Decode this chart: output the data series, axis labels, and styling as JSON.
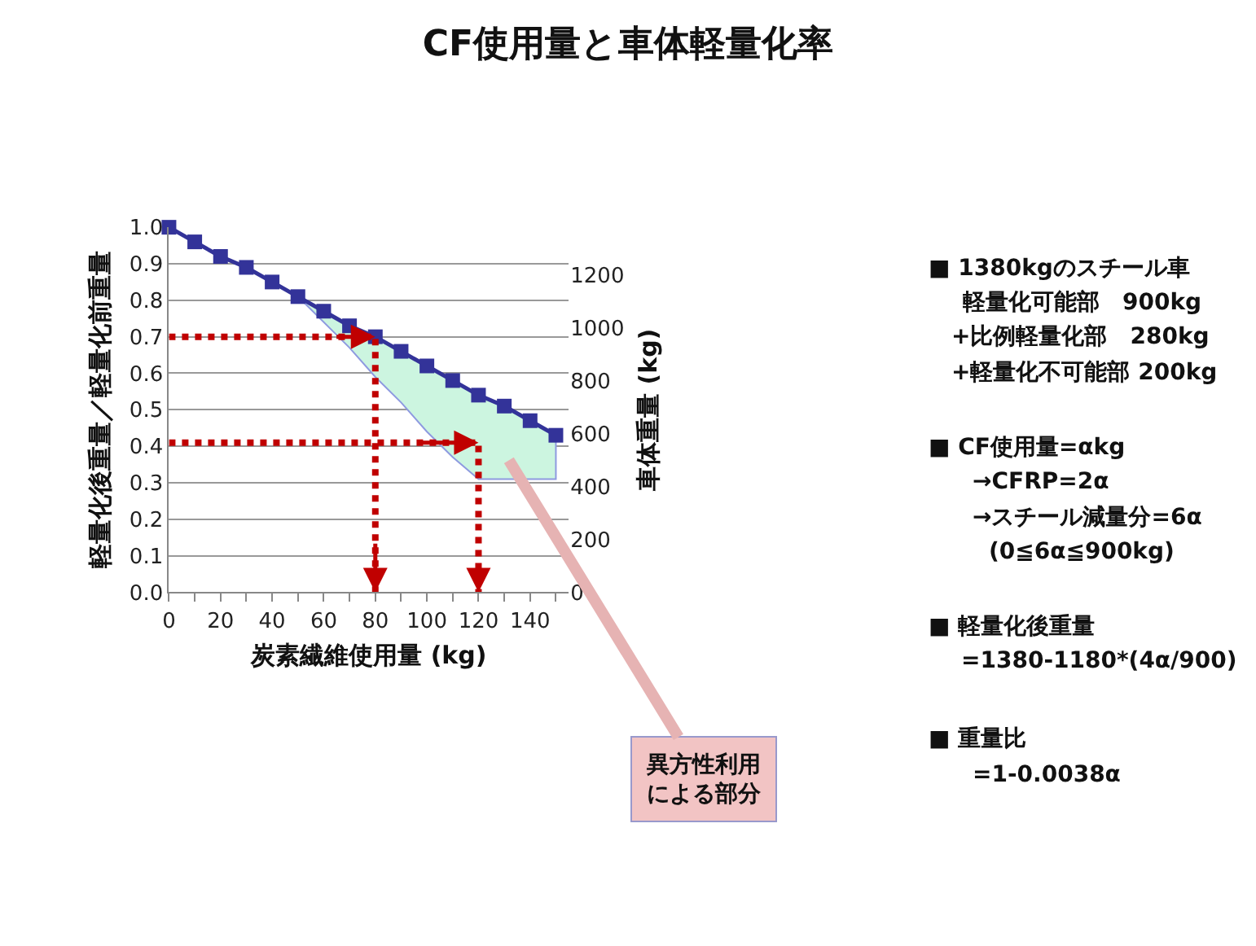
{
  "chart_data": {
    "type": "line",
    "title": "CF使用量と車体軽量化率",
    "xlabel": "炭素繊維使用量 (kg)",
    "ylabel": "軽量化後重量／軽量化前重量",
    "y2label": "車体重量 (kg)",
    "x": [
      0,
      10,
      20,
      30,
      40,
      50,
      60,
      70,
      80,
      90,
      100,
      110,
      120,
      130,
      140,
      150
    ],
    "series": [
      {
        "color": "#333399",
        "marker": "square",
        "line_style": "solid",
        "values": [
          1.0,
          0.96,
          0.92,
          0.89,
          0.85,
          0.81,
          0.77,
          0.73,
          0.7,
          0.66,
          0.62,
          0.58,
          0.54,
          0.51,
          0.47,
          0.43
        ],
        "lower": [
          null,
          null,
          null,
          null,
          null,
          0.81,
          0.74,
          0.67,
          0.59,
          0.52,
          0.44,
          0.37,
          0.31,
          0.31,
          0.31,
          0.31
        ],
        "upper": [
          null,
          null,
          null,
          null,
          null,
          0.81,
          0.77,
          0.73,
          0.7,
          0.66,
          0.62,
          0.58,
          0.54,
          0.51,
          0.47,
          0.43
        ]
      },
      {
        "color": "#c00000",
        "marker": "none",
        "line_style": "dotted",
        "x": [
          0,
          80,
          80
        ],
        "values": [
          0.7,
          0.7,
          0.0
        ]
      },
      {
        "color": "#c00000",
        "marker": "none",
        "line_style": "dotted",
        "x": [
          0,
          120,
          120
        ],
        "values": [
          0.41,
          0.41,
          0.0
        ]
      }
    ],
    "xlim": [
      0,
      155
    ],
    "xticks": [
      0,
      20,
      40,
      60,
      80,
      100,
      120,
      140
    ],
    "ylim": [
      0,
      1.0
    ],
    "yticks": [
      {
        "value": 0,
        "label": "0.0"
      },
      0.1,
      0.2,
      0.3,
      0.4,
      0.5,
      0.6,
      0.7,
      0.8,
      0.9,
      {
        "value": 1.0,
        "label": "1.0"
      }
    ],
    "y2lim": [
      0,
      1380
    ],
    "y2ticks": [
      0,
      200,
      400,
      600,
      800,
      1000,
      1200
    ],
    "grid": "y",
    "annotations": [
      "■ 1380kgのスチール車",
      "軽量化可能部　900kg",
      "+比例軽量化部　280kg",
      "+軽量化不可能部 200kg",
      "■ CF使用量=αkg",
      "→CFRP=2α",
      "→スチール減量分=6α",
      "(0≦6α≦900kg)",
      "■ 軽量化後重量",
      "=1380-1180*(4α/900)",
      "■ 重量比",
      "=1-0.0038α",
      "異方性利用による部分"
    ]
  }
}
